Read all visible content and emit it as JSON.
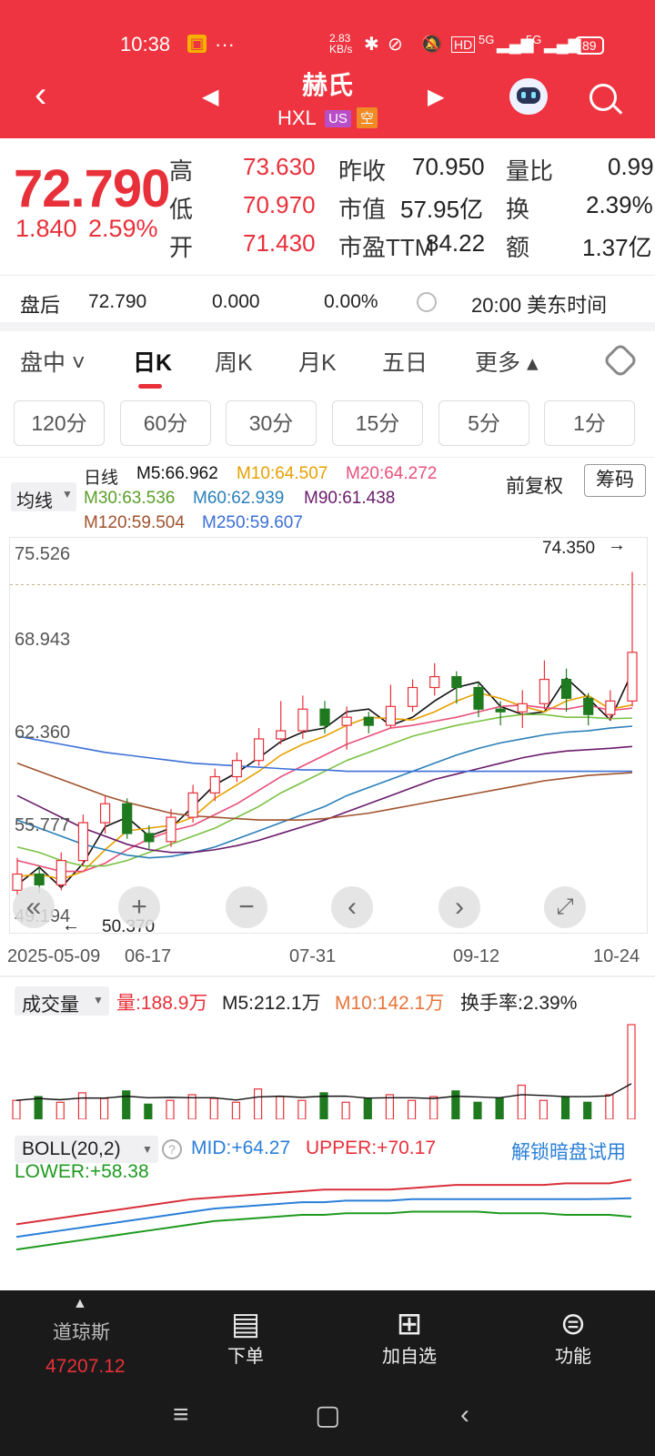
{
  "status_bar": {
    "time": "10:38",
    "net_speed": "2.83 KB/s",
    "network": "5G",
    "battery": "89"
  },
  "header": {
    "name": "赫氏",
    "ticker": "HXL",
    "market_tag": "US",
    "short_tag": "空"
  },
  "quote": {
    "price": "72.790",
    "change": "1.840",
    "change_pct": "2.59%",
    "high_label": "高",
    "high": "73.630",
    "low_label": "低",
    "low": "70.970",
    "open_label": "开",
    "open": "71.430",
    "prev_close_label": "昨收",
    "prev_close": "70.950",
    "mktcap_label": "市值",
    "mktcap": "57.95亿",
    "pe_label": "市盈TTM",
    "pe": "84.22",
    "vol_ratio_label": "量比",
    "vol_ratio": "0.99",
    "turnover_label": "换",
    "turnover": "2.39%",
    "amount_label": "额",
    "amount": "1.37亿"
  },
  "after_hours": {
    "label": "盘后",
    "price": "72.790",
    "change": "0.000",
    "pct": "0.00%",
    "time": "20:00 美东时间"
  },
  "tabs": [
    "盘中",
    "日K",
    "周K",
    "月K",
    "五日",
    "更多"
  ],
  "active_tab": "日K",
  "minute_pills": [
    "120分",
    "60分",
    "30分",
    "15分",
    "5分",
    "1分"
  ],
  "ma_legend": {
    "selector": "均线",
    "period": "日线",
    "m5": "M5:66.962",
    "m10": "M10:64.507",
    "m20": "M20:64.272",
    "m30": "M30:63.536",
    "m60": "M60:62.939",
    "m90": "M90:61.438",
    "m120": "M120:59.504",
    "m250": "M250:59.607",
    "adjust": "前复权",
    "chip": "筹码"
  },
  "colors": {
    "up": "#e8303a",
    "down": "#1f7a1f",
    "m5": "#111111",
    "m10": "#e6a000",
    "m20": "#e8507a",
    "m30": "#7bc143",
    "m60": "#2a7fb8",
    "m90": "#6a1b6a",
    "m120": "#a0522d",
    "m250": "#3b6fd8"
  },
  "chart_data": {
    "type": "candlestick",
    "y_ticks": [
      "75.526",
      "68.943",
      "62.360",
      "55.777",
      "49.194"
    ],
    "x_ticks": [
      "2025-05-09",
      "06-17",
      "07-31",
      "09-12",
      "10-24"
    ],
    "max_label": "74.350",
    "min_label": "50.370",
    "ylim": [
      48.6,
      76.2
    ],
    "series": [
      {
        "name": "M5",
        "values": [
          51.2,
          52.5,
          51.0,
          52.8,
          55.5,
          56.2,
          54.8,
          55.4,
          57.0,
          58.6,
          59.5,
          60.6,
          61.8,
          62.5,
          62.8,
          64.0,
          64.2,
          63.0,
          63.6,
          64.8,
          65.8,
          66.2,
          64.4,
          63.8,
          64.0,
          66.5,
          65.0,
          63.4,
          66.962
        ]
      },
      {
        "name": "M10",
        "values": [
          51.8,
          52.0,
          51.6,
          52.2,
          53.8,
          55.2,
          55.4,
          55.6,
          56.2,
          57.6,
          58.6,
          59.6,
          60.8,
          61.6,
          62.2,
          63.0,
          63.6,
          63.5,
          63.4,
          64.0,
          64.8,
          65.4,
          65.0,
          64.4,
          64.0,
          64.8,
          65.2,
          64.2,
          64.507
        ]
      },
      {
        "name": "M20",
        "values": [
          53.0,
          52.6,
          52.2,
          52.2,
          52.8,
          53.8,
          54.6,
          55.2,
          55.6,
          56.4,
          57.2,
          58.2,
          59.2,
          60.0,
          60.8,
          61.6,
          62.2,
          62.8,
          63.0,
          63.3,
          63.6,
          64.0,
          64.4,
          64.5,
          64.3,
          64.2,
          64.5,
          64.1,
          64.272
        ]
      },
      {
        "name": "M30",
        "values": [
          54.0,
          53.6,
          53.0,
          52.6,
          52.6,
          53.0,
          53.6,
          54.2,
          54.8,
          55.4,
          56.2,
          57.0,
          58.0,
          58.8,
          59.6,
          60.4,
          61.0,
          61.6,
          62.2,
          62.6,
          63.0,
          63.3,
          63.6,
          63.8,
          63.8,
          63.6,
          63.6,
          63.5,
          63.536
        ]
      },
      {
        "name": "M60",
        "values": [
          56.0,
          55.4,
          54.8,
          54.2,
          53.8,
          53.4,
          53.2,
          53.3,
          53.6,
          54.0,
          54.6,
          55.2,
          55.8,
          56.4,
          57.0,
          57.8,
          58.4,
          59.0,
          59.6,
          60.2,
          60.8,
          61.3,
          61.7,
          62.0,
          62.3,
          62.5,
          62.6,
          62.8,
          62.939
        ]
      },
      {
        "name": "M90",
        "values": [
          57.8,
          57.0,
          56.2,
          55.4,
          54.8,
          54.2,
          53.8,
          53.6,
          53.6,
          53.8,
          54.1,
          54.5,
          55.0,
          55.5,
          56.0,
          56.6,
          57.2,
          57.8,
          58.4,
          59.0,
          59.4,
          59.8,
          60.2,
          60.6,
          60.9,
          61.1,
          61.2,
          61.3,
          61.438
        ]
      },
      {
        "name": "M120",
        "values": [
          60.2,
          59.6,
          59.0,
          58.4,
          57.8,
          57.3,
          56.9,
          56.5,
          56.3,
          56.2,
          56.1,
          56.0,
          56.0,
          56.0,
          56.1,
          56.3,
          56.5,
          56.8,
          57.1,
          57.4,
          57.7,
          58.0,
          58.3,
          58.6,
          58.9,
          59.1,
          59.3,
          59.4,
          59.504
        ]
      },
      {
        "name": "M250",
        "values": [
          62.2,
          61.9,
          61.6,
          61.3,
          61.0,
          60.8,
          60.6,
          60.4,
          60.2,
          60.1,
          60.0,
          59.9,
          59.8,
          59.7,
          59.7,
          59.6,
          59.6,
          59.6,
          59.6,
          59.6,
          59.6,
          59.6,
          59.6,
          59.6,
          59.6,
          59.6,
          59.6,
          59.6,
          59.607
        ]
      }
    ],
    "candles": [
      [
        50.8,
        52.0,
        53.2,
        50.4
      ],
      [
        52.0,
        51.2,
        52.6,
        50.6
      ],
      [
        51.2,
        53.0,
        53.6,
        50.8
      ],
      [
        53.0,
        55.8,
        56.4,
        52.6
      ],
      [
        55.8,
        57.2,
        57.8,
        55.0
      ],
      [
        57.2,
        55.0,
        57.6,
        54.6
      ],
      [
        55.0,
        54.4,
        55.6,
        53.8
      ],
      [
        54.4,
        56.2,
        56.8,
        54.0
      ],
      [
        56.2,
        58.0,
        58.6,
        55.8
      ],
      [
        58.0,
        59.2,
        59.8,
        57.4
      ],
      [
        59.2,
        60.4,
        61.0,
        58.8
      ],
      [
        60.4,
        62.0,
        62.8,
        60.0
      ],
      [
        62.0,
        62.6,
        64.8,
        61.6
      ],
      [
        62.6,
        64.2,
        65.2,
        62.0
      ],
      [
        64.2,
        63.0,
        64.8,
        62.4
      ],
      [
        63.0,
        63.6,
        64.4,
        61.2
      ],
      [
        63.6,
        63.0,
        64.0,
        62.4
      ],
      [
        63.0,
        64.4,
        66.0,
        62.8
      ],
      [
        64.4,
        65.8,
        66.4,
        64.0
      ],
      [
        65.8,
        66.6,
        67.6,
        65.2
      ],
      [
        66.6,
        65.8,
        67.0,
        64.6
      ],
      [
        65.8,
        64.2,
        66.2,
        63.6
      ],
      [
        64.2,
        64.0,
        64.8,
        63.0
      ],
      [
        64.0,
        64.6,
        65.6,
        62.8
      ],
      [
        64.6,
        66.4,
        67.8,
        64.2
      ],
      [
        66.4,
        65.0,
        67.2,
        64.0
      ],
      [
        65.0,
        63.8,
        65.4,
        63.0
      ],
      [
        63.8,
        64.8,
        65.6,
        63.4
      ],
      [
        64.8,
        68.4,
        74.35,
        64.4
      ]
    ],
    "volume": {
      "label": "成交量",
      "current": "量:188.9万",
      "m5": "M5:212.1万",
      "m10": "M10:142.1万",
      "turnover": "换手率:2.39%",
      "values": [
        1.0,
        1.2,
        0.9,
        1.4,
        1.1,
        1.5,
        0.8,
        1.0,
        1.3,
        1.1,
        0.9,
        1.6,
        1.2,
        1.0,
        1.4,
        0.9,
        1.1,
        1.3,
        1.0,
        1.2,
        1.5,
        0.9,
        1.1,
        1.8,
        1.0,
        1.2,
        0.9,
        1.3,
        5.0
      ]
    },
    "boll": {
      "label": "BOLL(20,2)",
      "mid": "MID:+64.27",
      "upper": "UPPER:+70.17",
      "lower": "LOWER:+58.38",
      "unlock": "解锁暗盘试用",
      "upper_vals": [
        56,
        57,
        58,
        59,
        60,
        61,
        62,
        63,
        64,
        64.5,
        65,
        65.5,
        66,
        66.5,
        67,
        67,
        67,
        67,
        67.5,
        68,
        68.5,
        68.5,
        68.5,
        68.5,
        68.5,
        69,
        69,
        69,
        70.17
      ],
      "mid_vals": [
        52,
        53,
        54,
        55,
        56,
        57,
        58,
        59,
        60,
        61,
        61.5,
        62,
        62.5,
        63,
        63,
        63.5,
        63.5,
        63.5,
        64,
        64,
        64,
        64,
        64,
        64,
        64,
        64,
        64,
        64.1,
        64.27
      ],
      "lower_vals": [
        48,
        49,
        50,
        51,
        52,
        53,
        54,
        55,
        56,
        57,
        57.5,
        58,
        58.5,
        59,
        59,
        59.5,
        59.5,
        59.5,
        60,
        60,
        60,
        60,
        59.5,
        59.5,
        59.5,
        59,
        59,
        59,
        58.38
      ]
    }
  },
  "footer": {
    "index_name": "道琼斯",
    "index_value": "47207.12",
    "order": "下单",
    "watchlist": "加自选",
    "functions": "功能"
  }
}
